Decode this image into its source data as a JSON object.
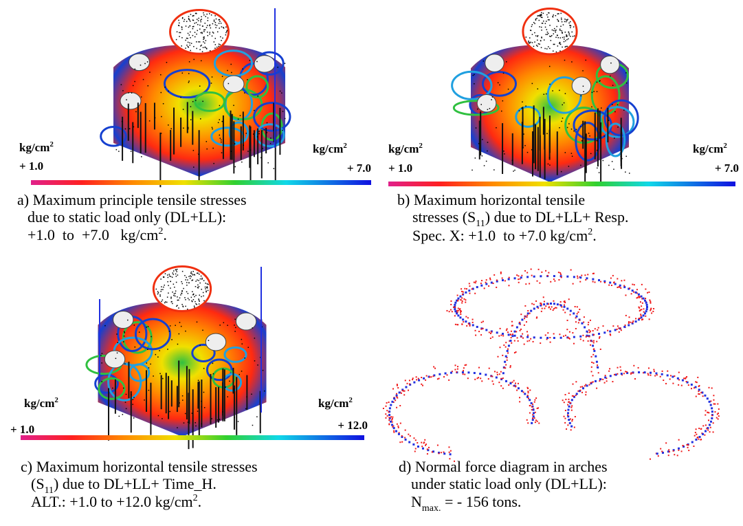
{
  "panels": [
    {
      "unit_left": {
        "base": "kg/cm",
        "sup": "2"
      },
      "min": "+ 1.0",
      "unit_right": {
        "base": "kg/cm",
        "sup": "2"
      },
      "max": "+ 7.0",
      "caption": [
        [
          {
            "text": "a) Maximum principle tensile stresses"
          }
        ],
        [
          {
            "text": "due to static load only (DL+LL):"
          }
        ],
        [
          {
            "text": "+1.0  to  +7.0   kg/cm"
          },
          {
            "sup": "2"
          },
          {
            "text": "."
          }
        ]
      ]
    },
    {
      "unit_left": {
        "base": "kg/cm",
        "sup": "2"
      },
      "min": "+ 1.0",
      "unit_right": {
        "base": "kg/cm",
        "sup": "2"
      },
      "max": "+ 7.0",
      "caption": [
        [
          {
            "text": "b) Maximum horizontal tensile"
          }
        ],
        [
          {
            "text": "stresses (S"
          },
          {
            "sub": "11"
          },
          {
            "text": ") due to DL+LL+ Resp."
          }
        ],
        [
          {
            "text": "Spec. X: +1.0  to +7.0 kg/cm"
          },
          {
            "sup": "2"
          },
          {
            "text": "."
          }
        ]
      ]
    },
    {
      "unit_left": {
        "base": "kg/cm",
        "sup": "2"
      },
      "min": "+ 1.0",
      "unit_right": {
        "base": "kg/cm",
        "sup": "2"
      },
      "max": "+ 12.0",
      "caption": [
        [
          {
            "text": "c) Maximum horizontal tensile stresses"
          }
        ],
        [
          {
            "text": "(S"
          },
          {
            "sub": "11"
          },
          {
            "text": ") due to DL+LL+ Time_H."
          }
        ],
        [
          {
            "text": "ALT.: +1.0 to +12.0 kg/cm"
          },
          {
            "sup": "2"
          },
          {
            "text": "."
          }
        ]
      ]
    },
    {
      "caption": [
        [
          {
            "text": "d) Normal force diagram in arches"
          }
        ],
        [
          {
            "text": "under static load only (DL+LL):"
          }
        ],
        [
          {
            "text": "N"
          },
          {
            "sub": "max."
          },
          {
            "text": " = - 156 tons."
          }
        ]
      ]
    }
  ]
}
